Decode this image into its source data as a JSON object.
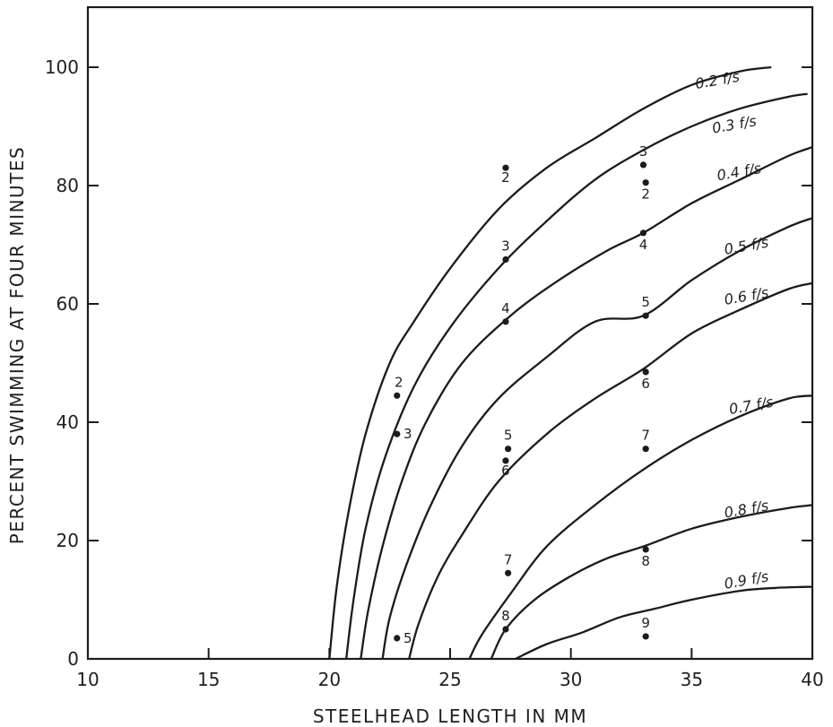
{
  "chart_data": {
    "type": "line",
    "xlabel": "STEELHEAD LENGTH IN MM",
    "ylabel": "PERCENT SWIMMING AT FOUR MINUTES",
    "xlim": [
      10,
      40
    ],
    "ylim": [
      0,
      105
    ],
    "x_ticks": [
      10,
      15,
      20,
      25,
      30,
      35,
      40
    ],
    "x_tick_labels": [
      "10",
      "15",
      "20",
      "25",
      "30",
      "35",
      "40"
    ],
    "y_ticks": [
      0,
      20,
      40,
      60,
      80,
      100
    ],
    "y_tick_labels": [
      "0",
      "20",
      "40",
      "60",
      "80",
      "100"
    ],
    "grid": false,
    "series": [
      {
        "name": "0.2 f/s",
        "x": [
          20.0,
          20.3,
          20.8,
          21.5,
          22.5,
          23.5,
          25.0,
          27.0,
          29.0,
          31.0,
          33.0,
          35.0,
          37.0,
          38.3
        ],
        "y": [
          0,
          12,
          25,
          38,
          50,
          57,
          66,
          76,
          83,
          88,
          93,
          97,
          99.3,
          100
        ]
      },
      {
        "name": "0.3 f/s",
        "x": [
          20.7,
          21.0,
          21.5,
          22.3,
          23.5,
          25.0,
          27.0,
          29.0,
          31.0,
          33.0,
          35.0,
          37.0,
          39.0,
          39.8
        ],
        "y": [
          0,
          10,
          22,
          34,
          46,
          56,
          66,
          74,
          81,
          86,
          90,
          93,
          95,
          95.5
        ]
      },
      {
        "name": "0.4 f/s",
        "x": [
          21.3,
          21.6,
          22.2,
          23.0,
          24.0,
          25.5,
          27.5,
          29.5,
          31.5,
          33.0,
          35.0,
          37.0,
          39.0,
          40.0
        ],
        "y": [
          0,
          8,
          19,
          30,
          40,
          50,
          58,
          64,
          69,
          72,
          77,
          81,
          85,
          86.5
        ]
      },
      {
        "name": "0.5 f/s",
        "x": [
          22.2,
          22.5,
          23.2,
          24.2,
          25.5,
          27.0,
          29.0,
          31.0,
          33.0,
          35.0,
          37.0,
          39.0,
          40.0
        ],
        "y": [
          0,
          7,
          16,
          26,
          36,
          44,
          51,
          57,
          58,
          64,
          69,
          73,
          74.5
        ]
      },
      {
        "name": "0.6 f/s",
        "x": [
          23.3,
          23.7,
          24.5,
          25.5,
          27.0,
          29.0,
          31.0,
          33.0,
          35.0,
          37.0,
          39.0,
          40.0
        ],
        "y": [
          0,
          6,
          14,
          21,
          30,
          38,
          44,
          49,
          55,
          59,
          62.5,
          63.5
        ]
      },
      {
        "name": "0.7 f/s",
        "x": [
          25.8,
          26.3,
          27.5,
          29.0,
          31.0,
          33.0,
          35.0,
          37.0,
          39.0,
          40.0
        ],
        "y": [
          0,
          4,
          11,
          19,
          26,
          32,
          37,
          41,
          44,
          44.5
        ]
      },
      {
        "name": "0.8 f/s",
        "x": [
          26.7,
          27.3,
          28.5,
          30.0,
          31.5,
          33.0,
          35.0,
          37.0,
          39.0,
          40.0
        ],
        "y": [
          0,
          5,
          10,
          14,
          17,
          19,
          22,
          24,
          25.5,
          26
        ]
      },
      {
        "name": "0.9 f/s",
        "x": [
          27.7,
          29.0,
          30.5,
          32.0,
          33.5,
          35.0,
          37.0,
          38.5,
          40.0
        ],
        "y": [
          0,
          2.5,
          4.5,
          7,
          8.5,
          10,
          11.5,
          12,
          12.2
        ]
      }
    ],
    "curve_labels": [
      {
        "text": "0.2 f/s",
        "x": 36.1,
        "y": 97
      },
      {
        "text": "0.3 f/s",
        "x": 36.8,
        "y": 89.5
      },
      {
        "text": "0.4 f/s",
        "x": 37.0,
        "y": 81.5
      },
      {
        "text": "0.5 f/s",
        "x": 37.3,
        "y": 69
      },
      {
        "text": "0.6 f/s",
        "x": 37.3,
        "y": 60.5
      },
      {
        "text": "0.7 f/s",
        "x": 37.5,
        "y": 42
      },
      {
        "text": "0.8 f/s",
        "x": 37.3,
        "y": 24.5
      },
      {
        "text": "0.9 f/s",
        "x": 37.3,
        "y": 12.5
      }
    ],
    "points": [
      {
        "x": 27.3,
        "y": 83,
        "label": "2"
      },
      {
        "x": 27.3,
        "y": 67.5,
        "label": "3"
      },
      {
        "x": 27.3,
        "y": 57,
        "label": "4"
      },
      {
        "x": 27.4,
        "y": 35.5,
        "label": "5"
      },
      {
        "x": 27.3,
        "y": 33.5,
        "label": "6"
      },
      {
        "x": 27.4,
        "y": 14.5,
        "label": "7"
      },
      {
        "x": 27.3,
        "y": 5,
        "label": "8"
      },
      {
        "x": 22.8,
        "y": 44.5,
        "label": "2"
      },
      {
        "x": 22.8,
        "y": 38,
        "label": "3"
      },
      {
        "x": 22.8,
        "y": 3.5,
        "label": "5"
      },
      {
        "x": 33.0,
        "y": 83.5,
        "label": "3"
      },
      {
        "x": 33.1,
        "y": 80.5,
        "label": "2"
      },
      {
        "x": 33.0,
        "y": 72,
        "label": "4"
      },
      {
        "x": 33.1,
        "y": 58,
        "label": "5"
      },
      {
        "x": 33.1,
        "y": 48.5,
        "label": "6"
      },
      {
        "x": 33.1,
        "y": 35.5,
        "label": "7"
      },
      {
        "x": 33.1,
        "y": 18.5,
        "label": "8"
      },
      {
        "x": 33.1,
        "y": 3.8,
        "label": "9"
      }
    ]
  },
  "colors": {
    "ink": "#1b1b1b",
    "paper": "#ffffff"
  }
}
